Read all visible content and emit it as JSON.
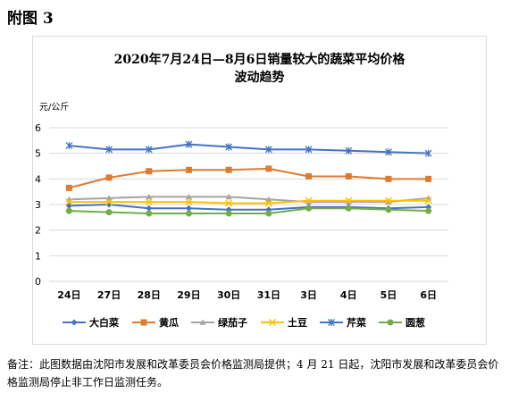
{
  "page_label": "附图 3",
  "unit_label": "元/公斤",
  "footnote": "备注：此图数据由沈阳市发展和改革委员会价格监测局提供；4 月 21 日起，沈阳市发展和改革委员会价格监测局停止非工作日监测任务。",
  "chart_data": {
    "type": "line",
    "title_line1": "2020年7月24日—8月6日销量较大的蔬菜平均价格",
    "title_line2": "波动趋势",
    "ylabel": "元/公斤",
    "ylim": [
      0,
      6
    ],
    "yticks": [
      "0",
      "1",
      "2",
      "3",
      "4",
      "5",
      "6"
    ],
    "grid": true,
    "legend_position": "bottom",
    "categories": [
      "24日",
      "27日",
      "28日",
      "29日",
      "30日",
      "31日",
      "3日",
      "4日",
      "5日",
      "6日"
    ],
    "series": [
      {
        "name": "大白菜",
        "color": "#4472c4",
        "marker": "diamond",
        "values": [
          2.95,
          3.0,
          2.85,
          2.85,
          2.8,
          2.8,
          2.9,
          2.9,
          2.85,
          2.9
        ]
      },
      {
        "name": "黄瓜",
        "color": "#e07a2e",
        "marker": "square",
        "values": [
          3.65,
          4.05,
          4.3,
          4.35,
          4.35,
          4.4,
          4.1,
          4.1,
          4.0,
          4.0
        ]
      },
      {
        "name": "绿茄子",
        "color": "#a5a5a5",
        "marker": "triangle",
        "values": [
          3.2,
          3.25,
          3.3,
          3.3,
          3.3,
          3.2,
          3.1,
          3.1,
          3.1,
          3.25
        ]
      },
      {
        "name": "土豆",
        "color": "#ffc000",
        "marker": "x",
        "values": [
          3.1,
          3.1,
          3.1,
          3.1,
          3.05,
          3.05,
          3.15,
          3.15,
          3.15,
          3.15
        ]
      },
      {
        "name": "芹菜",
        "color": "#4472c4",
        "marker": "asterisk",
        "values": [
          5.3,
          5.15,
          5.15,
          5.35,
          5.25,
          5.15,
          5.15,
          5.1,
          5.05,
          5.0
        ]
      },
      {
        "name": "圆葱",
        "color": "#70ad47",
        "marker": "circle",
        "values": [
          2.75,
          2.7,
          2.65,
          2.65,
          2.65,
          2.65,
          2.85,
          2.85,
          2.8,
          2.75
        ]
      }
    ]
  }
}
